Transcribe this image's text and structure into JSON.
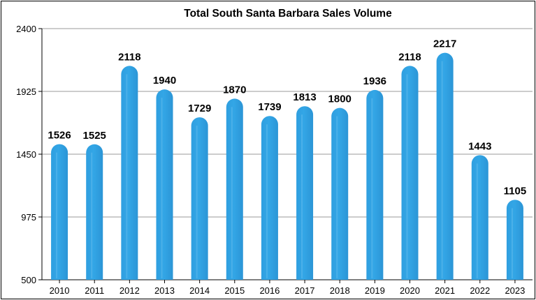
{
  "chart_data": {
    "type": "bar",
    "title": "Total South Santa Barbara Sales Volume",
    "xlabel": "",
    "ylabel": "",
    "categories": [
      "2010",
      "2011",
      "2012",
      "2013",
      "2014",
      "2015",
      "2016",
      "2017",
      "2018",
      "2019",
      "2020",
      "2021",
      "2022",
      "2023"
    ],
    "values": [
      1526,
      1525,
      2118,
      1940,
      1729,
      1870,
      1739,
      1813,
      1800,
      1936,
      2118,
      2217,
      1443,
      1105
    ],
    "ylim": [
      500,
      2400
    ],
    "yticks": [
      500,
      975,
      1450,
      1925,
      2400
    ],
    "grid": true,
    "legend": "none",
    "bar_color": "#2f9fe0",
    "bar_highlight": "#7cc8f2"
  }
}
